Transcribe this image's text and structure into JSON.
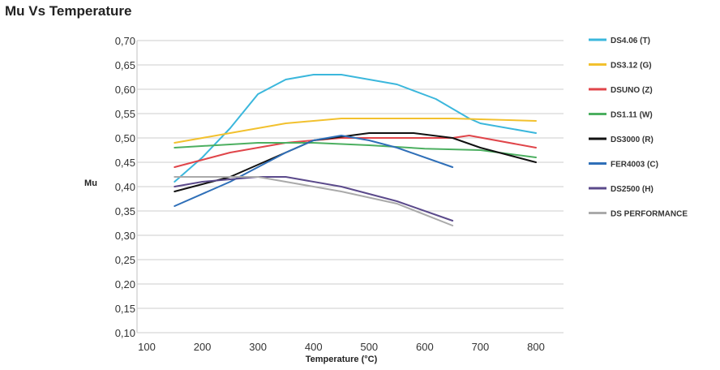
{
  "chart_data": {
    "type": "line",
    "title": "Mu Vs Temperature",
    "xlabel": "Temperature (°C)",
    "ylabel": "Mu",
    "xlim": [
      100,
      800
    ],
    "ylim": [
      0.1,
      0.7
    ],
    "xticks": [
      "100",
      "200",
      "300",
      "400",
      "500",
      "600",
      "700",
      "800"
    ],
    "yticks": [
      "0,10",
      "0,15",
      "0,20",
      "0,25",
      "0,30",
      "0,35",
      "0,40",
      "0,45",
      "0,50",
      "0,55",
      "0,60",
      "0,65",
      "0,70"
    ],
    "grid": true,
    "legend_position": "right",
    "series": [
      {
        "name": "DS4.06 (T)",
        "color": "#3bb7dc",
        "x": [
          150,
          200,
          250,
          300,
          350,
          400,
          450,
          500,
          550,
          620,
          680,
          700,
          800
        ],
        "y": [
          0.41,
          0.46,
          0.52,
          0.59,
          0.62,
          0.63,
          0.63,
          0.62,
          0.61,
          0.58,
          0.54,
          0.53,
          0.51
        ]
      },
      {
        "name": "DS3.12 (G)",
        "color": "#f2c12e",
        "x": [
          150,
          250,
          350,
          450,
          550,
          650,
          800
        ],
        "y": [
          0.49,
          0.51,
          0.53,
          0.54,
          0.54,
          0.54,
          0.535
        ]
      },
      {
        "name": "DSUNO (Z)",
        "color": "#e0454a",
        "x": [
          150,
          250,
          350,
          450,
          550,
          650,
          680,
          800
        ],
        "y": [
          0.44,
          0.47,
          0.49,
          0.5,
          0.5,
          0.5,
          0.505,
          0.48
        ]
      },
      {
        "name": "DS1.11 (W)",
        "color": "#4caf60",
        "x": [
          150,
          300,
          400,
          500,
          600,
          700,
          800
        ],
        "y": [
          0.48,
          0.49,
          0.49,
          0.485,
          0.478,
          0.475,
          0.46
        ]
      },
      {
        "name": "DS3000 (R)",
        "color": "#111111",
        "x": [
          150,
          250,
          350,
          400,
          500,
          580,
          650,
          700,
          800
        ],
        "y": [
          0.39,
          0.42,
          0.47,
          0.495,
          0.51,
          0.51,
          0.5,
          0.48,
          0.45
        ]
      },
      {
        "name": "FER4003 (C)",
        "color": "#2f6fb8",
        "x": [
          150,
          250,
          350,
          400,
          450,
          500,
          550,
          650
        ],
        "y": [
          0.36,
          0.41,
          0.47,
          0.495,
          0.505,
          0.495,
          0.48,
          0.44
        ]
      },
      {
        "name": "DS2500 (H)",
        "color": "#5b4a8b",
        "x": [
          150,
          200,
          300,
          350,
          450,
          550,
          650
        ],
        "y": [
          0.4,
          0.41,
          0.42,
          0.42,
          0.4,
          0.37,
          0.33
        ]
      },
      {
        "name": "DS PERFORMANCE",
        "color": "#aaaaaa",
        "x": [
          150,
          300,
          350,
          450,
          550,
          650
        ],
        "y": [
          0.42,
          0.42,
          0.41,
          0.39,
          0.365,
          0.32
        ]
      }
    ]
  }
}
